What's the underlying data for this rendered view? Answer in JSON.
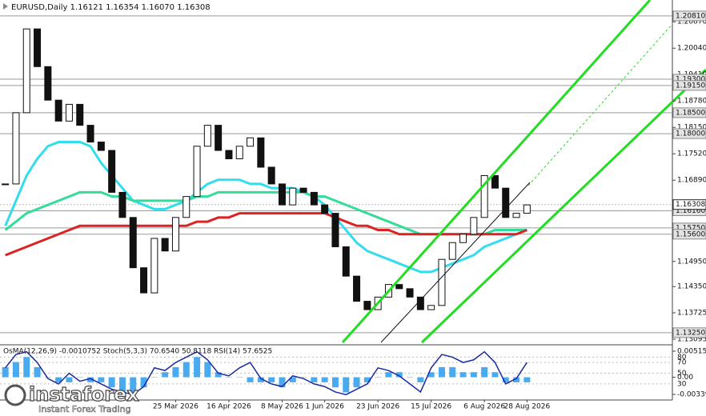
{
  "chart_data": {
    "type": "candlestick",
    "title": "EURUSD,Daily  1.16121 1.16354 1.16070 1.16308",
    "categories": [
      null,
      null,
      null,
      null,
      null,
      null,
      null,
      null,
      null,
      null,
      null,
      null,
      null,
      null,
      null,
      null,
      "25 Mar 2026",
      null,
      null,
      null,
      null,
      "16 Apr 2026",
      null,
      null,
      null,
      null,
      "8 May 2026",
      null,
      null,
      null,
      "1 Jun 2026",
      null,
      null,
      null,
      null,
      "23 Jun 2026",
      null,
      null,
      null,
      null,
      "15 Jul 2026",
      null,
      null,
      null,
      null,
      "6 Aug 2026",
      null,
      null,
      null,
      "28 Aug 2026"
    ],
    "close": [
      1.168,
      1.185,
      1.205,
      1.196,
      1.188,
      1.183,
      1.187,
      1.182,
      1.178,
      1.176,
      1.166,
      1.16,
      1.148,
      1.142,
      1.155,
      1.152,
      1.16,
      1.165,
      1.177,
      1.182,
      1.176,
      1.174,
      1.177,
      1.179,
      1.172,
      1.168,
      1.163,
      1.167,
      1.166,
      1.163,
      1.161,
      1.153,
      1.146,
      1.14,
      1.138,
      1.141,
      1.144,
      1.143,
      1.141,
      1.138,
      1.139,
      1.15,
      1.154,
      1.156,
      1.16,
      1.17,
      1.167,
      1.16,
      1.161,
      1.163
    ],
    "moving_averages": [
      {
        "color": "#33ddee",
        "values": [
          1.158,
          1.164,
          1.17,
          1.174,
          1.177,
          1.178,
          1.178,
          1.178,
          1.177,
          1.173,
          1.17,
          1.167,
          1.164,
          1.163,
          1.162,
          1.162,
          1.163,
          1.164,
          1.166,
          1.168,
          1.169,
          1.169,
          1.169,
          1.168,
          1.168,
          1.167,
          1.167,
          1.167,
          1.166,
          1.165,
          1.163,
          1.16,
          1.157,
          1.154,
          1.152,
          1.151,
          1.15,
          1.149,
          1.148,
          1.147,
          1.147,
          1.148,
          1.149,
          1.15,
          1.151,
          1.153,
          1.154,
          1.155,
          1.156,
          1.157
        ]
      },
      {
        "color": "#33dd99",
        "values": [
          1.157,
          1.159,
          1.161,
          1.162,
          1.163,
          1.164,
          1.165,
          1.166,
          1.166,
          1.166,
          1.165,
          1.165,
          1.164,
          1.164,
          1.164,
          1.164,
          1.164,
          1.164,
          1.165,
          1.165,
          1.166,
          1.166,
          1.166,
          1.166,
          1.166,
          1.166,
          1.166,
          1.166,
          1.166,
          1.165,
          1.165,
          1.164,
          1.163,
          1.162,
          1.161,
          1.16,
          1.159,
          1.158,
          1.157,
          1.156,
          1.156,
          1.156,
          1.156,
          1.156,
          1.156,
          1.156,
          1.157,
          1.157,
          1.157,
          1.157
        ]
      },
      {
        "color": "#dd2222",
        "values": [
          1.151,
          1.152,
          1.153,
          1.154,
          1.155,
          1.156,
          1.157,
          1.158,
          1.158,
          1.158,
          1.158,
          1.158,
          1.158,
          1.158,
          1.158,
          1.158,
          1.158,
          1.158,
          1.159,
          1.159,
          1.16,
          1.16,
          1.161,
          1.161,
          1.161,
          1.161,
          1.161,
          1.161,
          1.161,
          1.161,
          1.161,
          1.16,
          1.159,
          1.158,
          1.158,
          1.157,
          1.157,
          1.156,
          1.156,
          1.156,
          1.156,
          1.156,
          1.156,
          1.156,
          1.156,
          1.156,
          1.156,
          1.156,
          1.156,
          1.157
        ]
      }
    ],
    "ylim": [
      1.1298,
      1.2119
    ],
    "yticks": [
      {
        "value": 1.2067,
        "label": "1.20670"
      },
      {
        "value": 1.2004,
        "label": "1.20040"
      },
      {
        "value": 1.1941,
        "label": "1.19410"
      },
      {
        "value": 1.1878,
        "label": "1.18780"
      },
      {
        "value": 1.1815,
        "label": "1.18150"
      },
      {
        "value": 1.1752,
        "label": "1.17520"
      },
      {
        "value": 1.1689,
        "label": "1.16890"
      },
      {
        "value": 1.1495,
        "label": "1.14950"
      },
      {
        "value": 1.1435,
        "label": "1.14350"
      },
      {
        "value": 1.13725,
        "label": "1.13725"
      },
      {
        "value": 1.13095,
        "label": "1.13095"
      }
    ],
    "levels": [
      {
        "value": 1.2081,
        "label": "1.20810"
      },
      {
        "value": 1.193,
        "label": "1.19300"
      },
      {
        "value": 1.1915,
        "label": "1.19150"
      },
      {
        "value": 1.185,
        "label": "1.18500"
      },
      {
        "value": 1.18,
        "label": "1.18000"
      },
      {
        "value": 1.1616,
        "label": "1.16160"
      },
      {
        "value": 1.1575,
        "label": "1.15750"
      },
      {
        "value": 1.156,
        "label": "1.15600"
      },
      {
        "value": 1.1325,
        "label": "1.13250"
      }
    ],
    "current_price": {
      "value": 1.16308,
      "label": "1.16308"
    },
    "indicators": {
      "title": "OsMA(12,26,9) -0.0010752  Stoch(5,3,3) 70.6540 50.8118  RSI(14) 57.6525",
      "osma": {
        "color": "#4aaaf0",
        "ylim": [
          -0.0045,
          0.0061
        ],
        "yticks": [
          {
            "value": 0.005151,
            "label": "0.005151"
          },
          {
            "value": 0,
            "label": "0.00"
          },
          {
            "value": -0.00339,
            "label": "-0.00339"
          }
        ],
        "values": [
          0.002,
          0.003,
          0.004,
          0.002,
          0.0,
          -0.001,
          -0.001,
          0.0,
          -0.001,
          -0.001,
          -0.002,
          -0.003,
          -0.003,
          -0.002,
          0.0,
          0.001,
          0.002,
          0.003,
          0.004,
          0.003,
          0.001,
          0.0,
          0.0,
          -0.001,
          -0.001,
          -0.001,
          -0.002,
          -0.001,
          0.0,
          -0.001,
          -0.001,
          -0.002,
          -0.003,
          -0.002,
          -0.001,
          0.0,
          0.001,
          0.001,
          0.0,
          -0.001,
          0.001,
          0.002,
          0.002,
          0.001,
          0.001,
          0.002,
          0.001,
          -0.001,
          -0.001,
          -0.001
        ]
      },
      "stoch": {
        "color": "#1a2aa0",
        "ylim": [
          0,
          100
        ],
        "yticks": [
          80,
          70,
          50,
          30
        ],
        "values": [
          60,
          85,
          90,
          70,
          40,
          30,
          50,
          35,
          40,
          30,
          20,
          15,
          10,
          25,
          60,
          55,
          70,
          80,
          90,
          75,
          50,
          45,
          60,
          70,
          40,
          30,
          25,
          45,
          40,
          30,
          25,
          15,
          10,
          20,
          30,
          60,
          55,
          45,
          30,
          15,
          60,
          85,
          80,
          70,
          75,
          90,
          70,
          30,
          40,
          70
        ]
      }
    }
  },
  "logo": {
    "name": "instaforex",
    "tagline": "Instant Forex Trading"
  }
}
